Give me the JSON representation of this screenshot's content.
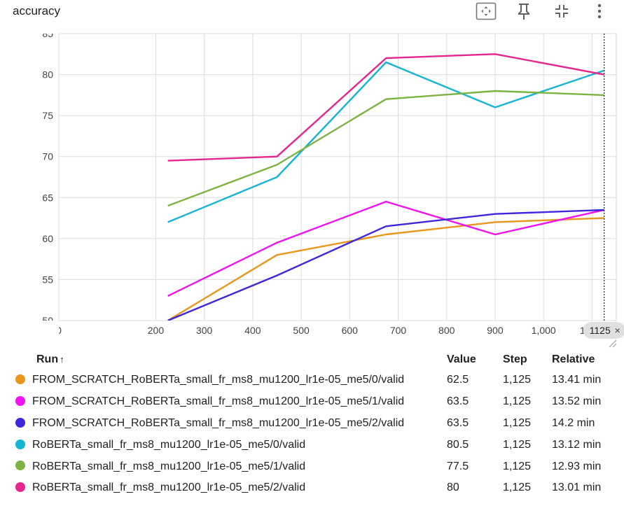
{
  "card": {
    "title": "accuracy",
    "toolbar_icons": [
      "fit-domain-icon",
      "pin-icon",
      "collapse-icon",
      "more-vert-icon"
    ]
  },
  "chart_data": {
    "type": "line",
    "xlabel": "",
    "ylabel": "",
    "xlim": [
      0,
      1125
    ],
    "ylim": [
      50,
      85
    ],
    "x_ticks": [
      {
        "v": 0,
        "label": "0"
      },
      {
        "v": 200,
        "label": "200"
      },
      {
        "v": 300,
        "label": "300"
      },
      {
        "v": 400,
        "label": "400"
      },
      {
        "v": 500,
        "label": "500"
      },
      {
        "v": 600,
        "label": "600"
      },
      {
        "v": 700,
        "label": "700"
      },
      {
        "v": 800,
        "label": "800"
      },
      {
        "v": 900,
        "label": "900"
      },
      {
        "v": 1000,
        "label": "1,000"
      },
      {
        "v": 1100,
        "label": "1,100"
      }
    ],
    "y_ticks": [
      {
        "v": 50,
        "label": "50"
      },
      {
        "v": 55,
        "label": "55"
      },
      {
        "v": 60,
        "label": "60"
      },
      {
        "v": 65,
        "label": "65"
      },
      {
        "v": 70,
        "label": "70"
      },
      {
        "v": 75,
        "label": "75"
      },
      {
        "v": 80,
        "label": "80"
      },
      {
        "v": 85,
        "label": "85"
      }
    ],
    "grid": true,
    "cursor_step": 1125,
    "cursor_label": "1125",
    "cursor_close": "×",
    "series": [
      {
        "name": "FROM_SCRATCH_RoBERTa_small_fr_ms8_mu1200_lr1e-05_me5/0/valid",
        "color": "#e8961c",
        "points": [
          [
            225,
            50
          ],
          [
            450,
            58
          ],
          [
            675,
            60.5
          ],
          [
            900,
            62
          ],
          [
            1125,
            62.5
          ]
        ]
      },
      {
        "name": "FROM_SCRATCH_RoBERTa_small_fr_ms8_mu1200_lr1e-05_me5/1/valid",
        "color": "#f012f0",
        "points": [
          [
            225,
            53
          ],
          [
            450,
            59.5
          ],
          [
            675,
            64.5
          ],
          [
            900,
            60.5
          ],
          [
            1125,
            63.5
          ]
        ]
      },
      {
        "name": "FROM_SCRATCH_RoBERTa_small_fr_ms8_mu1200_lr1e-05_me5/2/valid",
        "color": "#3f27dc",
        "points": [
          [
            225,
            50
          ],
          [
            450,
            55.5
          ],
          [
            675,
            61.5
          ],
          [
            900,
            63
          ],
          [
            1125,
            63.5
          ]
        ]
      },
      {
        "name": "RoBERTa_small_fr_ms8_mu1200_lr1e-05_me5/0/valid",
        "color": "#16b4d4",
        "points": [
          [
            225,
            62
          ],
          [
            450,
            67.5
          ],
          [
            675,
            81.5
          ],
          [
            900,
            76
          ],
          [
            1125,
            80.5
          ]
        ]
      },
      {
        "name": "RoBERTa_small_fr_ms8_mu1200_lr1e-05_me5/1/valid",
        "color": "#7cb342",
        "points": [
          [
            225,
            64
          ],
          [
            450,
            69
          ],
          [
            675,
            77
          ],
          [
            900,
            78
          ],
          [
            1125,
            77.5
          ]
        ]
      },
      {
        "name": "RoBERTa_small_fr_ms8_mu1200_lr1e-05_me5/2/valid",
        "color": "#e5268f",
        "points": [
          [
            225,
            69.5
          ],
          [
            450,
            70
          ],
          [
            675,
            82
          ],
          [
            900,
            82.5
          ],
          [
            1125,
            80
          ]
        ]
      }
    ]
  },
  "table": {
    "headers": {
      "run": "Run",
      "sort": "↑",
      "value": "Value",
      "step": "Step",
      "relative": "Relative"
    },
    "rows": [
      {
        "run": "FROM_SCRATCH_RoBERTa_small_fr_ms8_mu1200_lr1e-05_me5/0/valid",
        "color": "#e8961c",
        "value": "62.5",
        "step": "1,125",
        "relative": "13.41 min"
      },
      {
        "run": "FROM_SCRATCH_RoBERTa_small_fr_ms8_mu1200_lr1e-05_me5/1/valid",
        "color": "#f012f0",
        "value": "63.5",
        "step": "1,125",
        "relative": "13.52 min"
      },
      {
        "run": "FROM_SCRATCH_RoBERTa_small_fr_ms8_mu1200_lr1e-05_me5/2/valid",
        "color": "#3f27dc",
        "value": "63.5",
        "step": "1,125",
        "relative": "14.2 min"
      },
      {
        "run": "RoBERTa_small_fr_ms8_mu1200_lr1e-05_me5/0/valid",
        "color": "#16b4d4",
        "value": "80.5",
        "step": "1,125",
        "relative": "13.12 min"
      },
      {
        "run": "RoBERTa_small_fr_ms8_mu1200_lr1e-05_me5/1/valid",
        "color": "#7cb342",
        "value": "77.5",
        "step": "1,125",
        "relative": "12.93 min"
      },
      {
        "run": "RoBERTa_small_fr_ms8_mu1200_lr1e-05_me5/2/valid",
        "color": "#e5268f",
        "value": "80",
        "step": "1,125",
        "relative": "13.01 min"
      }
    ]
  }
}
